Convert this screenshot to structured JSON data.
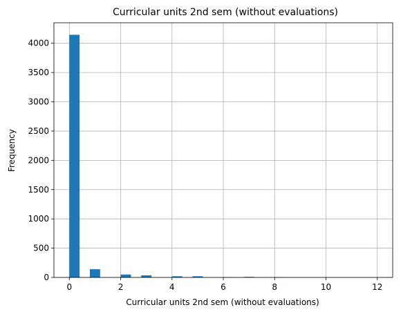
{
  "chart_data": {
    "type": "bar",
    "title": "Curricular units 2nd sem (without evaluations)",
    "xlabel": "Curricular units 2nd sem (without evaluations)",
    "ylabel": "Frequency",
    "xlim": [
      -0.6,
      12.6
    ],
    "ylim": [
      0,
      4350
    ],
    "xticks": [
      0,
      2,
      4,
      6,
      8,
      10,
      12
    ],
    "yticks": [
      0,
      500,
      1000,
      1500,
      2000,
      2500,
      3000,
      3500,
      4000
    ],
    "grid": true,
    "legend": "none",
    "bar_color": "#1f77b4",
    "bars": [
      {
        "x_start": 0.0,
        "x_end": 0.4,
        "value": 4145
      },
      {
        "x_start": 0.8,
        "x_end": 1.2,
        "value": 140
      },
      {
        "x_start": 2.0,
        "x_end": 2.4,
        "value": 50
      },
      {
        "x_start": 2.8,
        "x_end": 3.2,
        "value": 35
      },
      {
        "x_start": 4.0,
        "x_end": 4.4,
        "value": 20
      },
      {
        "x_start": 4.8,
        "x_end": 5.2,
        "value": 20
      },
      {
        "x_start": 6.0,
        "x_end": 6.4,
        "value": 5
      },
      {
        "x_start": 6.8,
        "x_end": 7.2,
        "value": 10
      },
      {
        "x_start": 8.0,
        "x_end": 8.4,
        "value": 5
      },
      {
        "x_start": 11.6,
        "x_end": 12.0,
        "value": 1
      }
    ]
  }
}
